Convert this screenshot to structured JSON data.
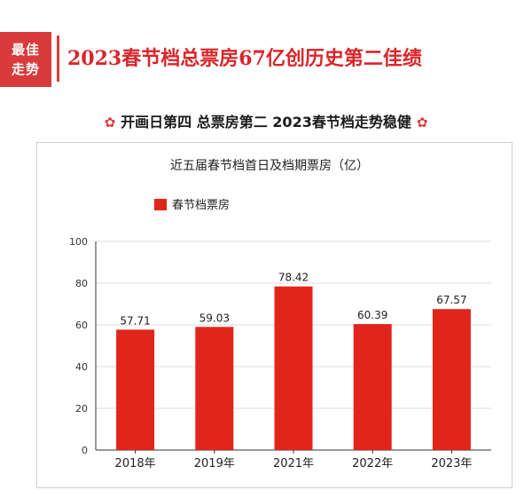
{
  "header": {
    "badge_line1": "最佳",
    "badge_line2": "走势",
    "title": "2023春节档总票房67亿创历史第二佳绩"
  },
  "subtitle": {
    "text": "开画日第四 总票房第二 2023春节档走势稳健",
    "flower_glyph": "✿",
    "color": "#d93a3a"
  },
  "chart_data": {
    "type": "bar",
    "title": "近五届春节档首日及档期票房（亿）",
    "categories": [
      "2018年",
      "2019年",
      "2021年",
      "2022年",
      "2023年"
    ],
    "series": [
      {
        "name": "春节档票房",
        "values": [
          57.71,
          59.03,
          78.42,
          60.39,
          67.57
        ],
        "color": "#e0251b"
      }
    ],
    "data_labels": [
      "57.71",
      "59.03",
      "78.42",
      "60.39",
      "67.57"
    ],
    "ylim": [
      0,
      100
    ],
    "yticks": [
      0,
      20,
      40,
      60,
      80,
      100
    ],
    "grid": true,
    "legend_position": "top-left"
  }
}
